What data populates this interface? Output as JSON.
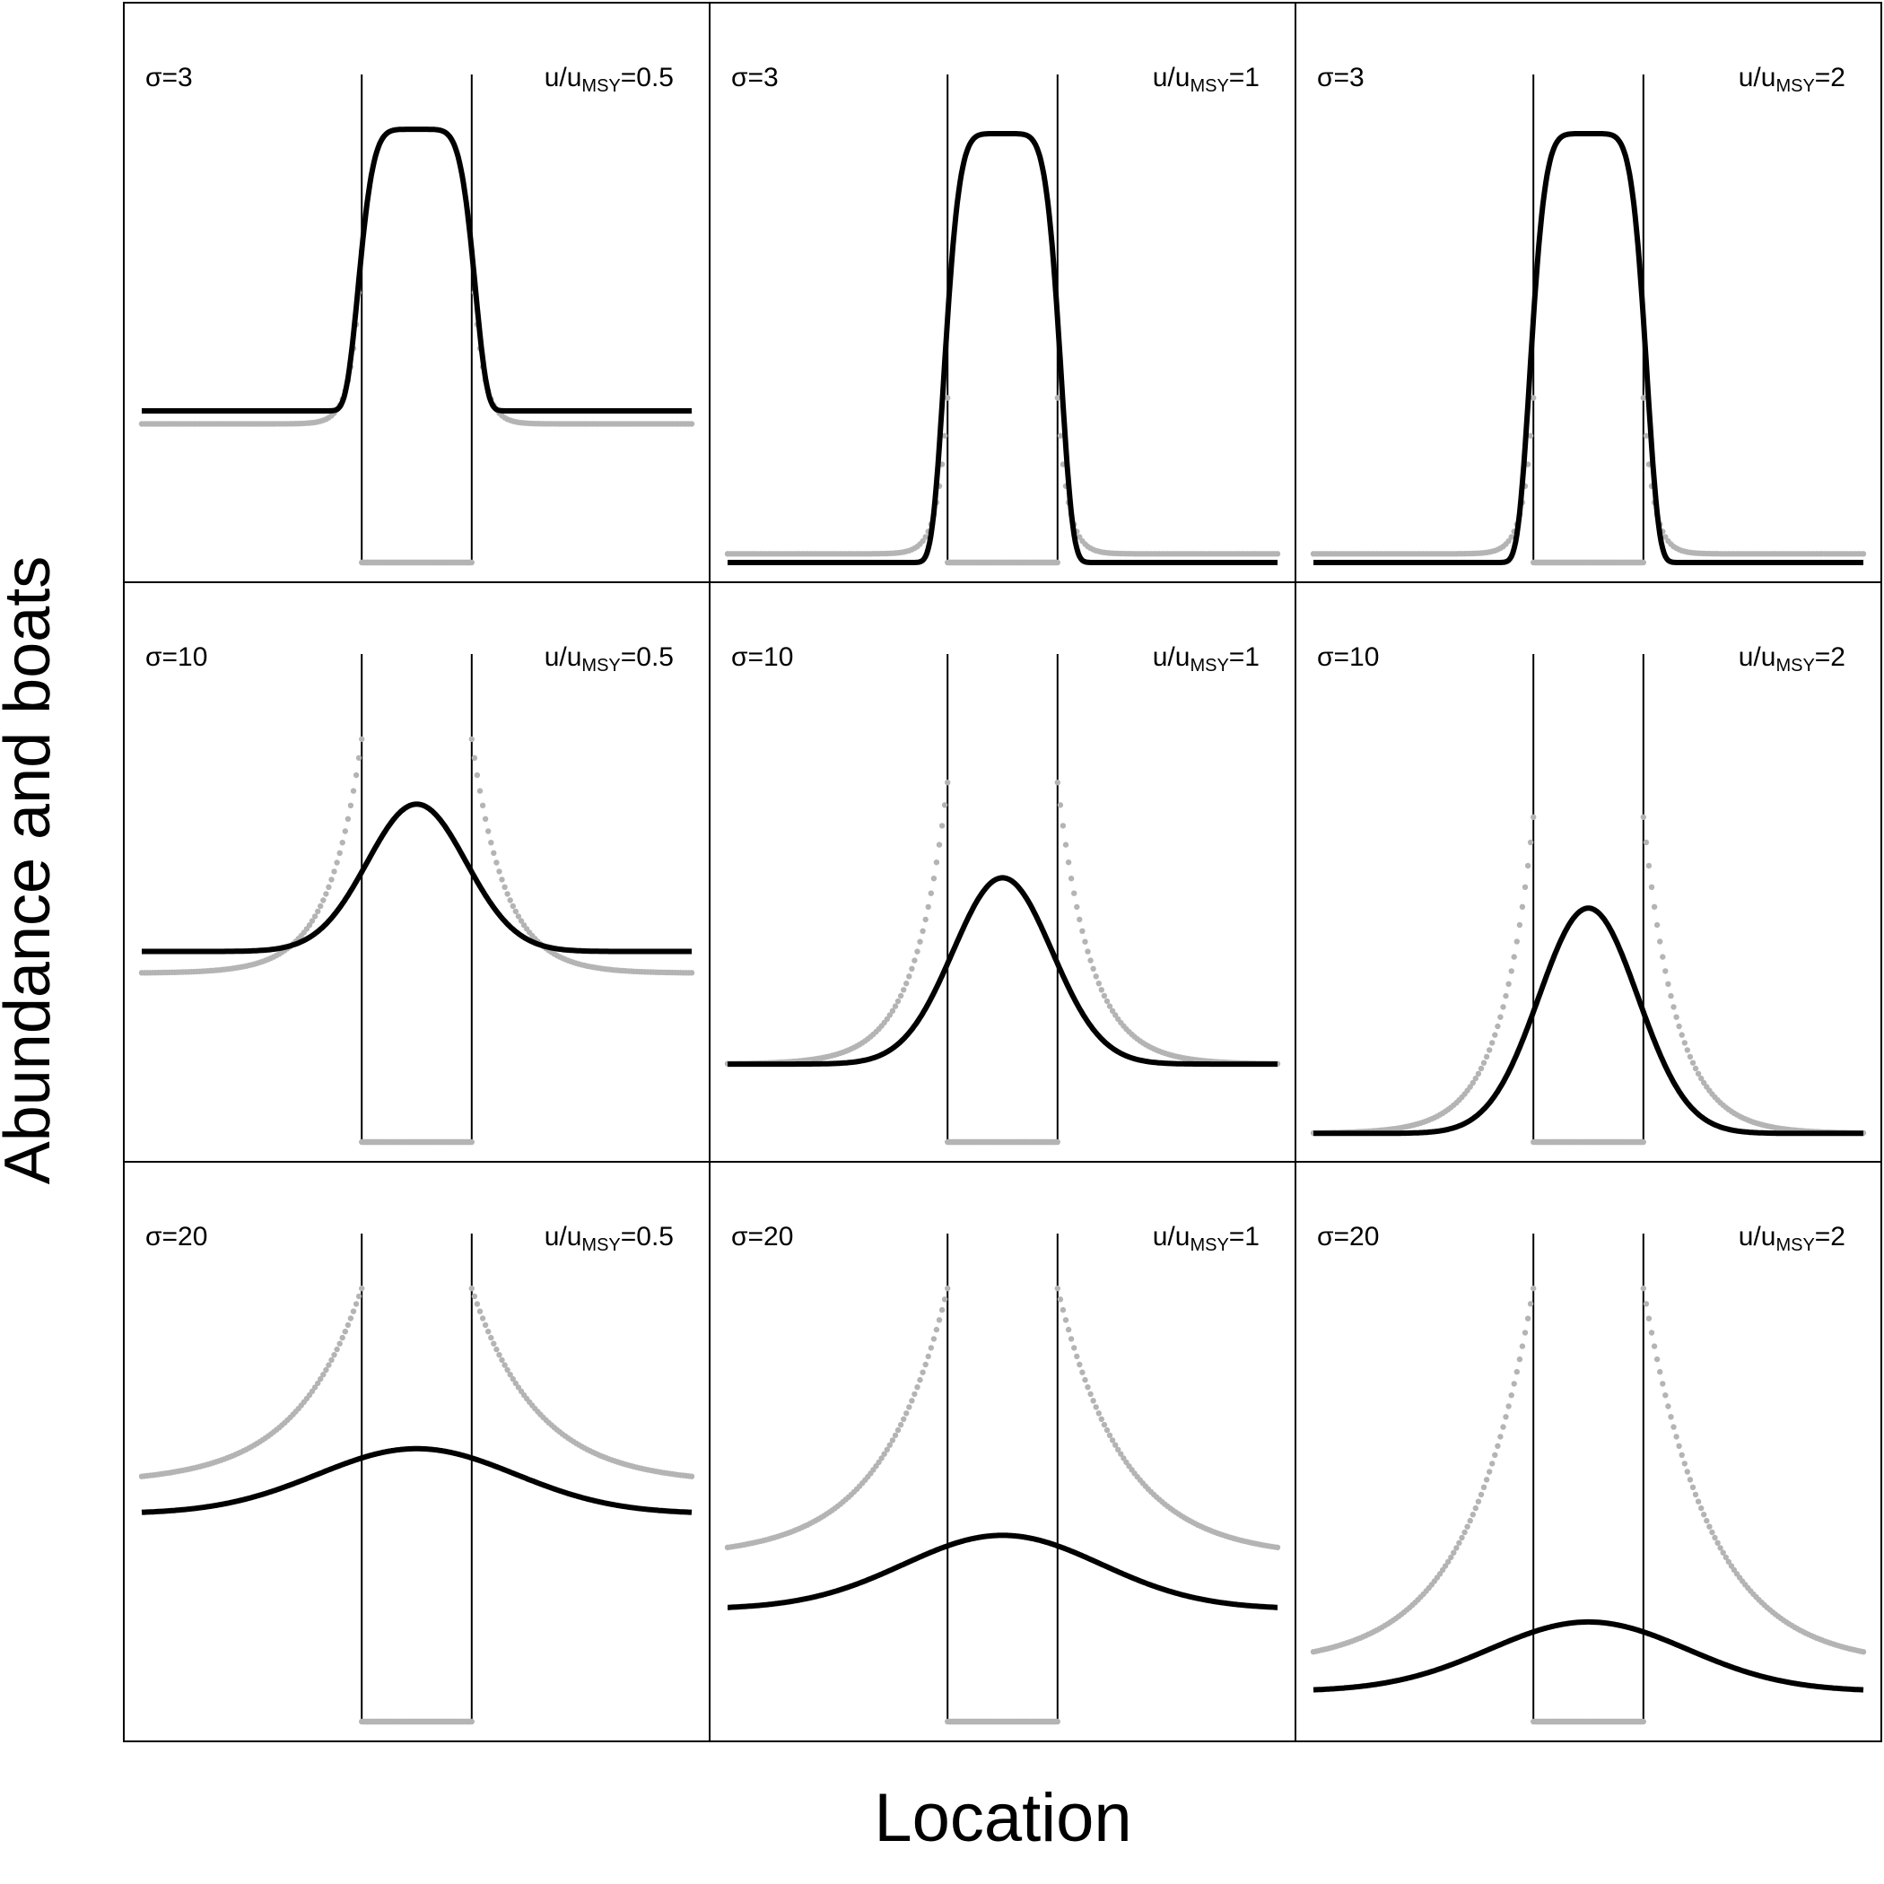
{
  "chart_data": {
    "type": "line",
    "xlabel": "Location",
    "ylabel": "Abundance and boats",
    "layout": "3x3 panel grid, no axis ticks",
    "reserve": {
      "x_range": [
        -50,
        50
      ],
      "reserve_range": [
        -10,
        10
      ]
    },
    "colors": {
      "abundance": "#000000",
      "boats": "#b4b4b4",
      "frame": "#000000"
    },
    "series_styles": {
      "abundance": "solid-thick-line",
      "boats": "dotted-points"
    },
    "y_range": [
      0,
      1.1
    ],
    "rows": [
      {
        "sigma_label": "σ=3"
      },
      {
        "sigma_label": "σ=10"
      },
      {
        "sigma_label": "σ=20"
      }
    ],
    "columns": [
      {
        "ratio_prefix": "u/u",
        "ratio_sub": "MSY",
        "ratio_suffix": "=0.5"
      },
      {
        "ratio_prefix": "u/u",
        "ratio_sub": "MSY",
        "ratio_suffix": "=1"
      },
      {
        "ratio_prefix": "u/u",
        "ratio_sub": "MSY",
        "ratio_suffix": "=2"
      }
    ],
    "panels": [
      {
        "row": 0,
        "col": 0,
        "abundance_peak": 1.0,
        "abundance_base": 0.35,
        "boats_base": 0.32,
        "boats_edge": 0.72,
        "sigma_width": 3
      },
      {
        "row": 0,
        "col": 1,
        "abundance_peak": 0.99,
        "abundance_base": 0.0,
        "boats_base": 0.02,
        "boats_edge": 0.38,
        "sigma_width": 3
      },
      {
        "row": 0,
        "col": 2,
        "abundance_peak": 0.99,
        "abundance_base": 0.0,
        "boats_base": 0.02,
        "boats_edge": 0.38,
        "sigma_width": 3
      },
      {
        "row": 1,
        "col": 0,
        "abundance_peak": 0.78,
        "abundance_base": 0.44,
        "boats_base": 0.39,
        "boats_edge": 0.93,
        "sigma_width": 10
      },
      {
        "row": 1,
        "col": 1,
        "abundance_peak": 0.61,
        "abundance_base": 0.18,
        "boats_base": 0.18,
        "boats_edge": 0.83,
        "sigma_width": 10
      },
      {
        "row": 1,
        "col": 2,
        "abundance_peak": 0.54,
        "abundance_base": 0.02,
        "boats_base": 0.02,
        "boats_edge": 0.75,
        "sigma_width": 10
      },
      {
        "row": 2,
        "col": 0,
        "abundance_peak": 0.63,
        "abundance_base": 0.48,
        "boats_base": 0.55,
        "boats_edge": 1.0,
        "sigma_width": 20
      },
      {
        "row": 2,
        "col": 1,
        "abundance_peak": 0.43,
        "abundance_base": 0.26,
        "boats_base": 0.38,
        "boats_edge": 1.0,
        "sigma_width": 20
      },
      {
        "row": 2,
        "col": 2,
        "abundance_peak": 0.23,
        "abundance_base": 0.07,
        "boats_base": 0.13,
        "boats_edge": 1.0,
        "sigma_width": 20
      }
    ]
  }
}
